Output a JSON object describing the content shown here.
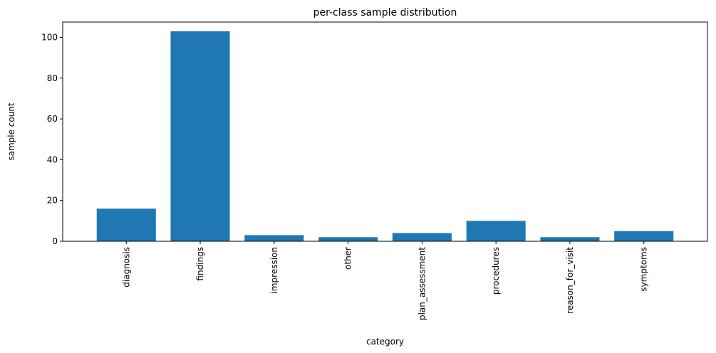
{
  "chart_data": {
    "type": "bar",
    "title": "per-class sample distribution",
    "xlabel": "category",
    "ylabel": "sample count",
    "categories": [
      "diagnosis",
      "findings",
      "impression",
      "other",
      "plan_assessment",
      "procedures",
      "reason_for_visit",
      "symptoms"
    ],
    "values": [
      16,
      103,
      3,
      2,
      4,
      10,
      2,
      5
    ],
    "ylim": [
      0,
      107.5
    ],
    "yticks": [
      0,
      20,
      40,
      60,
      80,
      100
    ],
    "bar_color": "#1f77b4",
    "grid": false,
    "legend": "none",
    "xtick_rotation": "vertical"
  }
}
